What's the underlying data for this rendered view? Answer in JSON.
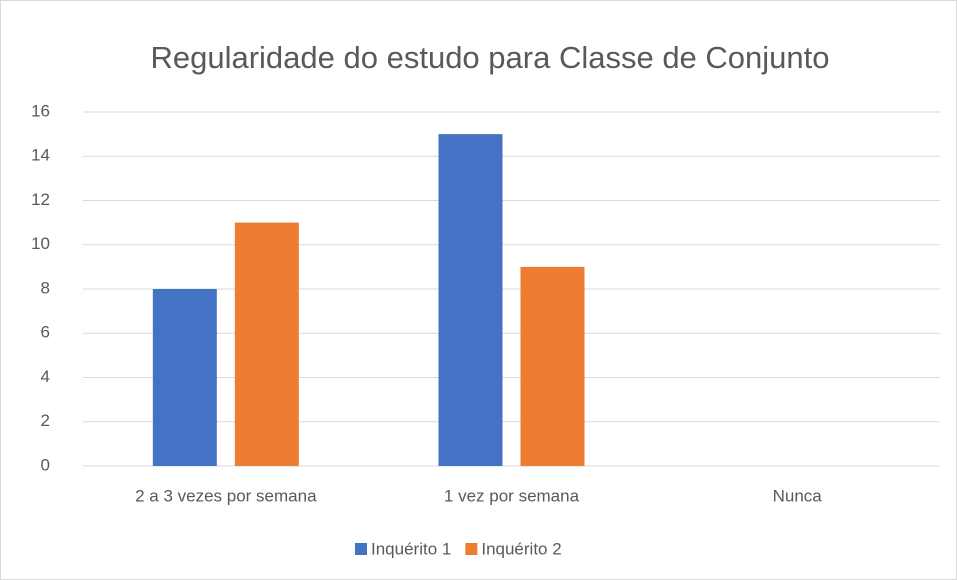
{
  "chart_data": {
    "type": "bar",
    "title": "Regularidade do estudo para Classe de Conjunto",
    "categories": [
      "2 a 3 vezes por semana",
      "1 vez por semana",
      "Nunca"
    ],
    "series": [
      {
        "name": "Inquérito 1",
        "color": "#4472c4",
        "values": [
          8,
          15,
          0
        ]
      },
      {
        "name": "Inquérito 2",
        "color": "#ed7d31",
        "values": [
          11,
          9,
          0
        ]
      }
    ],
    "ylim": [
      0,
      16
    ],
    "yticks": [
      0,
      2,
      4,
      6,
      8,
      10,
      12,
      14,
      16
    ],
    "grid": true,
    "legend": "bottom"
  }
}
